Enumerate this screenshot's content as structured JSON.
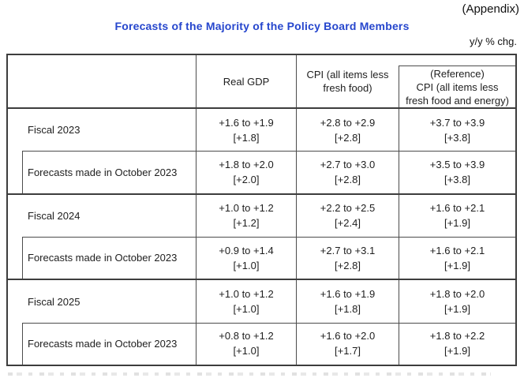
{
  "page": {
    "appendix_label": "(Appendix)",
    "title": "Forecasts of the Majority of the Policy Board Members",
    "unit_label": "y/y % chg.",
    "title_color": "#2646cd",
    "border_color": "#3d3d3d"
  },
  "table": {
    "header": {
      "real_gdp": "Real GDP",
      "cpi": "CPI (all items less\nfresh food)",
      "reference": "(Reference)\nCPI (all items less\nfresh food and energy)"
    },
    "groups": [
      {
        "fiscal": {
          "label": "Fiscal 2023",
          "values": [
            {
              "range": "+1.6 to +1.9",
              "point": "[+1.8]"
            },
            {
              "range": "+2.8 to +2.9",
              "point": "[+2.8]"
            },
            {
              "range": "+3.7 to +3.9",
              "point": "[+3.8]"
            }
          ]
        },
        "october": {
          "label": "Forecasts made in October 2023",
          "values": [
            {
              "range": "+1.8 to +2.0",
              "point": "[+2.0]"
            },
            {
              "range": "+2.7 to +3.0",
              "point": "[+2.8]"
            },
            {
              "range": "+3.5 to +3.9",
              "point": "[+3.8]"
            }
          ]
        }
      },
      {
        "fiscal": {
          "label": "Fiscal 2024",
          "values": [
            {
              "range": "+1.0 to +1.2",
              "point": "[+1.2]"
            },
            {
              "range": "+2.2 to +2.5",
              "point": "[+2.4]"
            },
            {
              "range": "+1.6 to +2.1",
              "point": "[+1.9]"
            }
          ]
        },
        "october": {
          "label": "Forecasts made in October 2023",
          "values": [
            {
              "range": "+0.9 to +1.4",
              "point": "[+1.0]"
            },
            {
              "range": "+2.7 to +3.1",
              "point": "[+2.8]"
            },
            {
              "range": "+1.6 to +2.1",
              "point": "[+1.9]"
            }
          ]
        }
      },
      {
        "fiscal": {
          "label": "Fiscal 2025",
          "values": [
            {
              "range": "+1.0 to +1.2",
              "point": "[+1.0]"
            },
            {
              "range": "+1.6 to +1.9",
              "point": "[+1.8]"
            },
            {
              "range": "+1.8 to +2.0",
              "point": "[+1.9]"
            }
          ]
        },
        "october": {
          "label": "Forecasts made in October 2023",
          "values": [
            {
              "range": "+0.8 to +1.2",
              "point": "[+1.0]"
            },
            {
              "range": "+1.6 to +2.0",
              "point": "[+1.7]"
            },
            {
              "range": "+1.8 to +2.2",
              "point": "[+1.9]"
            }
          ]
        }
      }
    ]
  }
}
